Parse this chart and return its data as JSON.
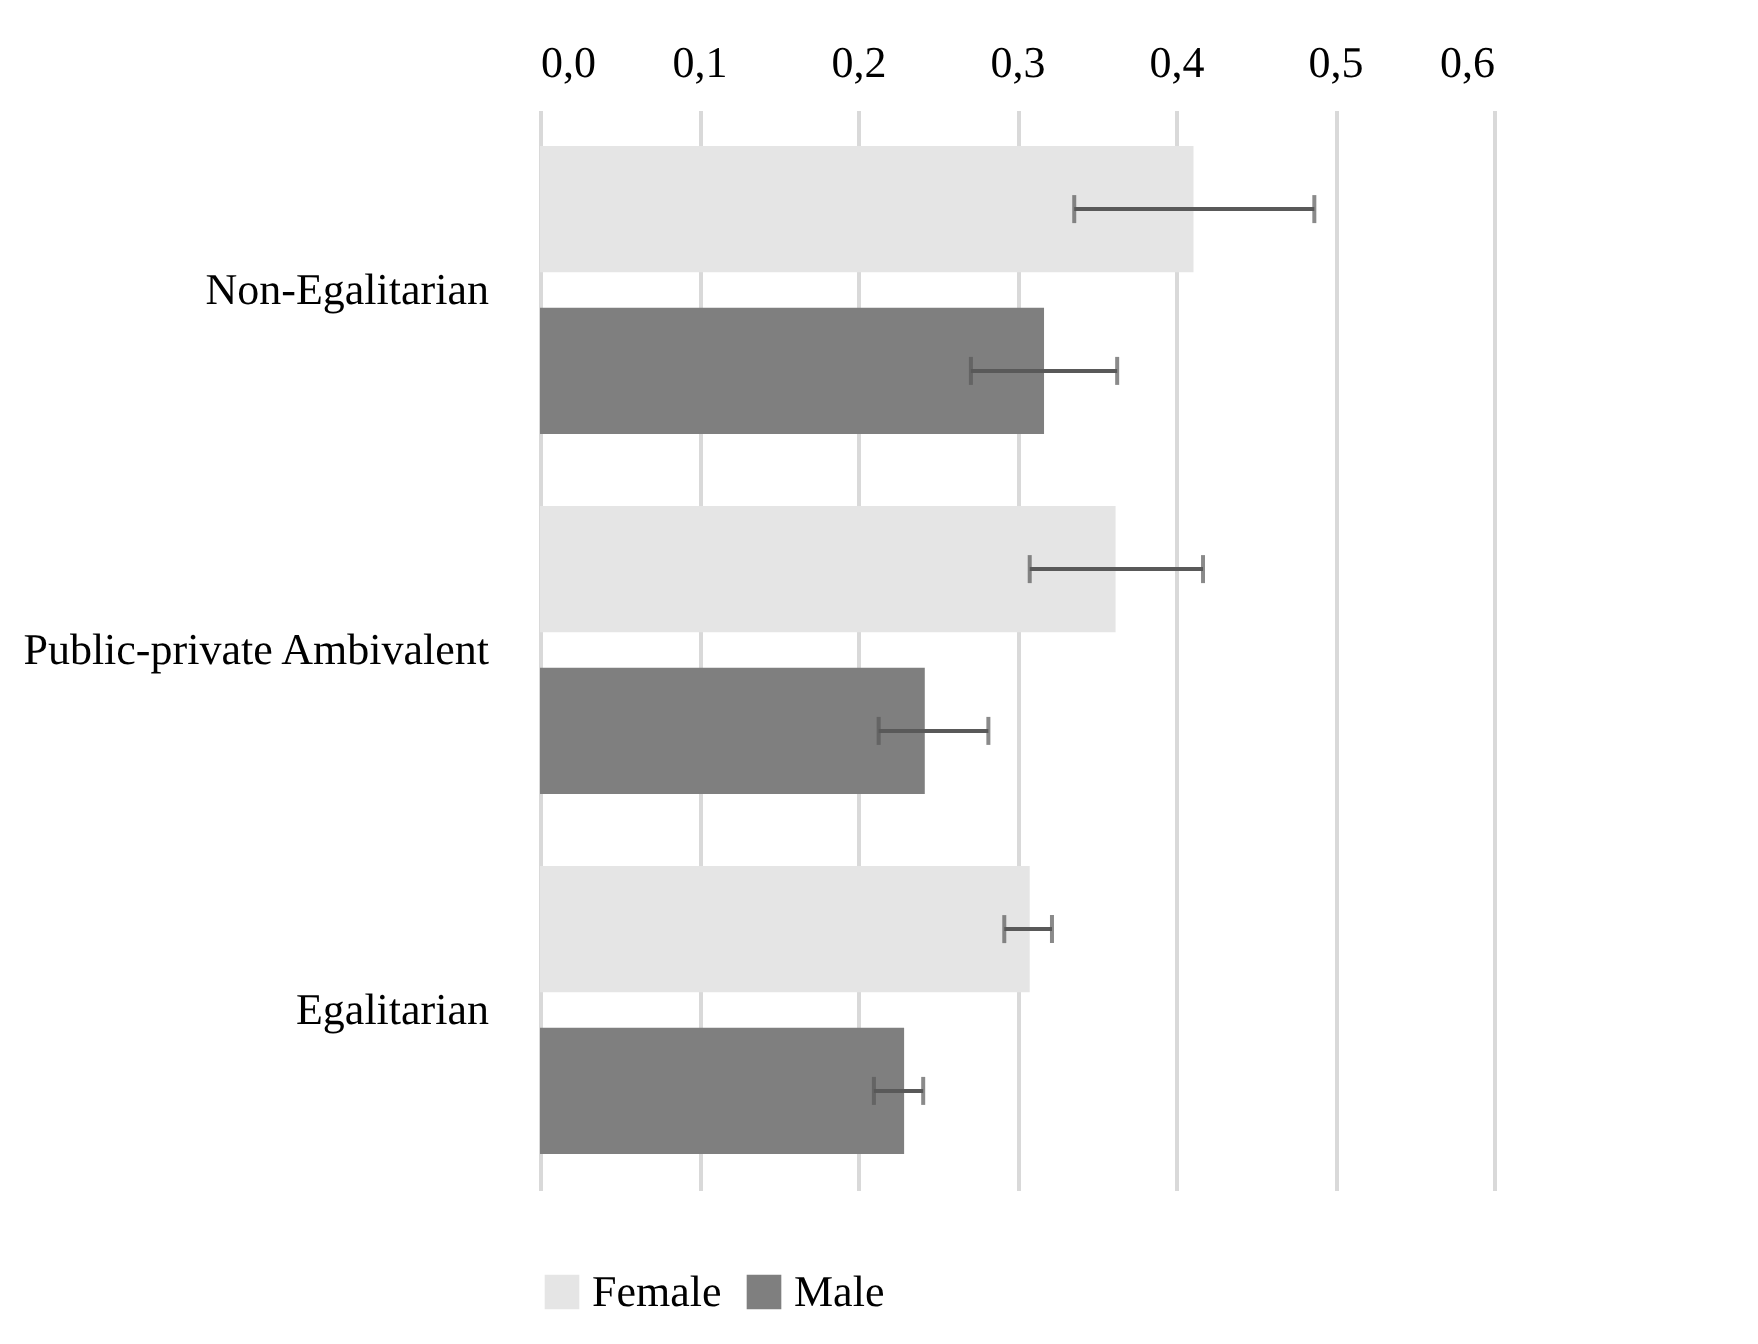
{
  "chart_data": {
    "type": "bar",
    "orientation": "horizontal",
    "categories": [
      "Non-Egalitarian",
      "Public-private Ambivalent",
      "Egalitarian"
    ],
    "series": [
      {
        "name": "Female",
        "color": "#e5e5e5",
        "values": [
          0.411,
          0.362,
          0.308
        ],
        "errors": [
          [
            0.336,
            0.487
          ],
          [
            0.308,
            0.417
          ],
          [
            0.292,
            0.322
          ]
        ]
      },
      {
        "name": "Male",
        "color": "#7f7f7f",
        "values": [
          0.317,
          0.242,
          0.229
        ],
        "errors": [
          [
            0.271,
            0.363
          ],
          [
            0.213,
            0.282
          ],
          [
            0.21,
            0.241
          ]
        ]
      }
    ],
    "xlim": [
      0,
      0.6
    ],
    "xticks": [
      {
        "value": 0,
        "label": "0,0"
      },
      {
        "value": 0.1,
        "label": "0,1"
      },
      {
        "value": 0.2,
        "label": "0,2"
      },
      {
        "value": 0.3,
        "label": "0,3"
      },
      {
        "value": 0.4,
        "label": "0,4"
      },
      {
        "value": 0.5,
        "label": "0,5"
      },
      {
        "value": 0.6,
        "label": "0,6"
      }
    ],
    "grid": "x",
    "legend": "bottom"
  }
}
